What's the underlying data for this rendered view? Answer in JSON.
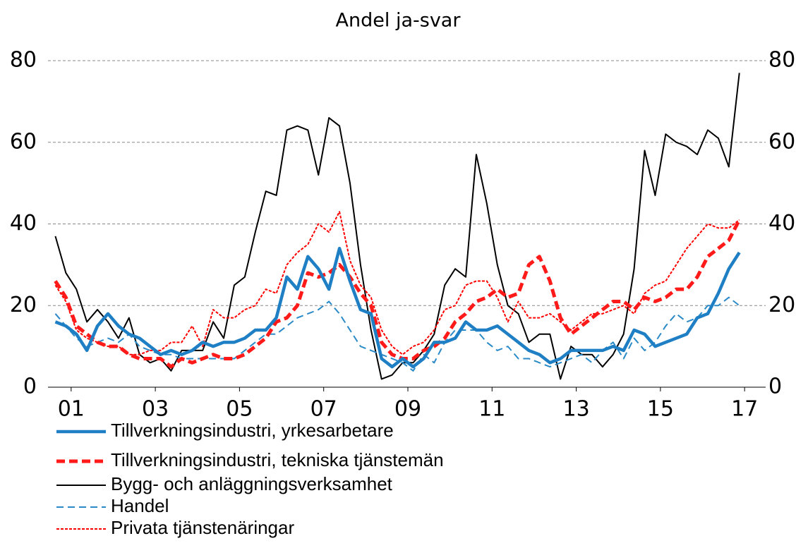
{
  "chart_data": {
    "type": "line",
    "title": "Andel ja-svar",
    "x": [
      1.125,
      1.375,
      1.625,
      1.875,
      2.125,
      2.375,
      2.625,
      2.875,
      3.125,
      3.375,
      3.625,
      3.875,
      4.125,
      4.375,
      4.625,
      4.875,
      5.125,
      5.375,
      5.625,
      5.875,
      6.125,
      6.375,
      6.625,
      6.875,
      7.125,
      7.375,
      7.625,
      7.875,
      8.125,
      8.375,
      8.625,
      8.875,
      9.125,
      9.375,
      9.625,
      9.875,
      10.125,
      10.375,
      10.625,
      10.875,
      11.125,
      11.375,
      11.625,
      11.875,
      12.125,
      12.375,
      12.625,
      12.875,
      13.125,
      13.375,
      13.625,
      13.875,
      14.125,
      14.375,
      14.625,
      14.875,
      15.125,
      15.375,
      15.625,
      15.875,
      16.125,
      16.375,
      16.625,
      16.875,
      17.125,
      17.375
    ],
    "xlim": [
      0.95,
      18
    ],
    "xticks": [
      {
        "value": 1.5,
        "label": "01"
      },
      {
        "value": 3.5,
        "label": "03"
      },
      {
        "value": 5.5,
        "label": "05"
      },
      {
        "value": 7.5,
        "label": "07"
      },
      {
        "value": 9.5,
        "label": "09"
      },
      {
        "value": 11.5,
        "label": "11"
      },
      {
        "value": 13.5,
        "label": "13"
      },
      {
        "value": 15.5,
        "label": "15"
      },
      {
        "value": 17.5,
        "label": "17"
      }
    ],
    "ylim": [
      0,
      80
    ],
    "yticks": [
      0,
      20,
      40,
      60,
      80
    ],
    "y2lim": [
      0,
      80
    ],
    "y2ticks": [
      0,
      20,
      40,
      60,
      80
    ],
    "grid": true,
    "series": [
      {
        "name": "Tillverkningsindustri, yrkesarbetare",
        "color": "#1f7fc4",
        "line_style": "solid-thick",
        "values": [
          16,
          15,
          13,
          9,
          15,
          18,
          15,
          13,
          12,
          10,
          8,
          9,
          8,
          9,
          11,
          10,
          11,
          11,
          12,
          14,
          14,
          17,
          27,
          24,
          32,
          29,
          24,
          34,
          26,
          19,
          18,
          7,
          5,
          7,
          5,
          7,
          11,
          11,
          12,
          16,
          14,
          14,
          15,
          13,
          11,
          9,
          8,
          6,
          7,
          9,
          9,
          9,
          9,
          10,
          9,
          14,
          13,
          10,
          11,
          12,
          13,
          17,
          18,
          23,
          29,
          33
        ]
      },
      {
        "name": "Tillverkningsindustri, tekniska tjänstemän",
        "color": "#ff1a1a",
        "line_style": "dashed-thick",
        "values": [
          26,
          22,
          15,
          13,
          11,
          10,
          10,
          8,
          7,
          7,
          7,
          5,
          7,
          6,
          7,
          8,
          7,
          7,
          8,
          10,
          12,
          16,
          17,
          20,
          28,
          27,
          28,
          30,
          27,
          23,
          20,
          11,
          8,
          7,
          7,
          9,
          10,
          12,
          16,
          18,
          21,
          22,
          24,
          22,
          23,
          30,
          32,
          26,
          17,
          13,
          15,
          17,
          19,
          21,
          21,
          19,
          22,
          21,
          22,
          24,
          24,
          27,
          32,
          34,
          36,
          41
        ]
      },
      {
        "name": "Bygg- och anläggningsverksamhet",
        "color": "#000000",
        "line_style": "solid",
        "values": [
          37,
          28,
          24,
          16,
          19,
          16,
          12,
          17,
          8,
          6,
          7,
          4,
          9,
          9,
          9,
          16,
          12,
          25,
          27,
          38,
          48,
          47,
          63,
          64,
          63,
          52,
          66,
          64,
          50,
          30,
          14,
          2,
          3,
          6,
          6,
          9,
          13,
          25,
          29,
          27,
          57,
          45,
          30,
          20,
          18,
          11,
          13,
          13,
          2,
          10,
          8,
          8,
          5,
          8,
          13,
          29,
          58,
          47,
          62,
          60,
          59,
          57,
          63,
          61,
          54,
          77
        ]
      },
      {
        "name": "Handel",
        "color": "#2a8ac8",
        "line_style": "dashed",
        "values": [
          18,
          15,
          12,
          10,
          11,
          12,
          11,
          13,
          10,
          9,
          8,
          8,
          7,
          7,
          7,
          7,
          7,
          7,
          9,
          11,
          13,
          13,
          15,
          17,
          18,
          19,
          21,
          18,
          14,
          10,
          9,
          8,
          7,
          6,
          4,
          8,
          6,
          11,
          14,
          14,
          14,
          11,
          9,
          10,
          7,
          7,
          6,
          5,
          6,
          7,
          8,
          6,
          9,
          11,
          7,
          12,
          9,
          11,
          15,
          18,
          16,
          17,
          20,
          20,
          22,
          20
        ]
      },
      {
        "name": "Privata tjänstenäringar",
        "color": "#ff0000",
        "line_style": "dotted",
        "values": [
          25,
          21,
          14,
          12,
          11,
          10,
          10,
          8,
          8,
          9,
          9,
          11,
          11,
          15,
          10,
          19,
          17,
          17,
          19,
          20,
          24,
          23,
          30,
          33,
          35,
          40,
          38,
          43,
          31,
          25,
          22,
          14,
          10,
          8,
          10,
          11,
          14,
          19,
          20,
          25,
          26,
          26,
          22,
          16,
          21,
          17,
          17,
          18,
          16,
          14,
          16,
          18,
          18,
          19,
          20,
          18,
          23,
          25,
          26,
          30,
          34,
          37,
          40,
          39,
          39,
          41
        ]
      }
    ]
  }
}
